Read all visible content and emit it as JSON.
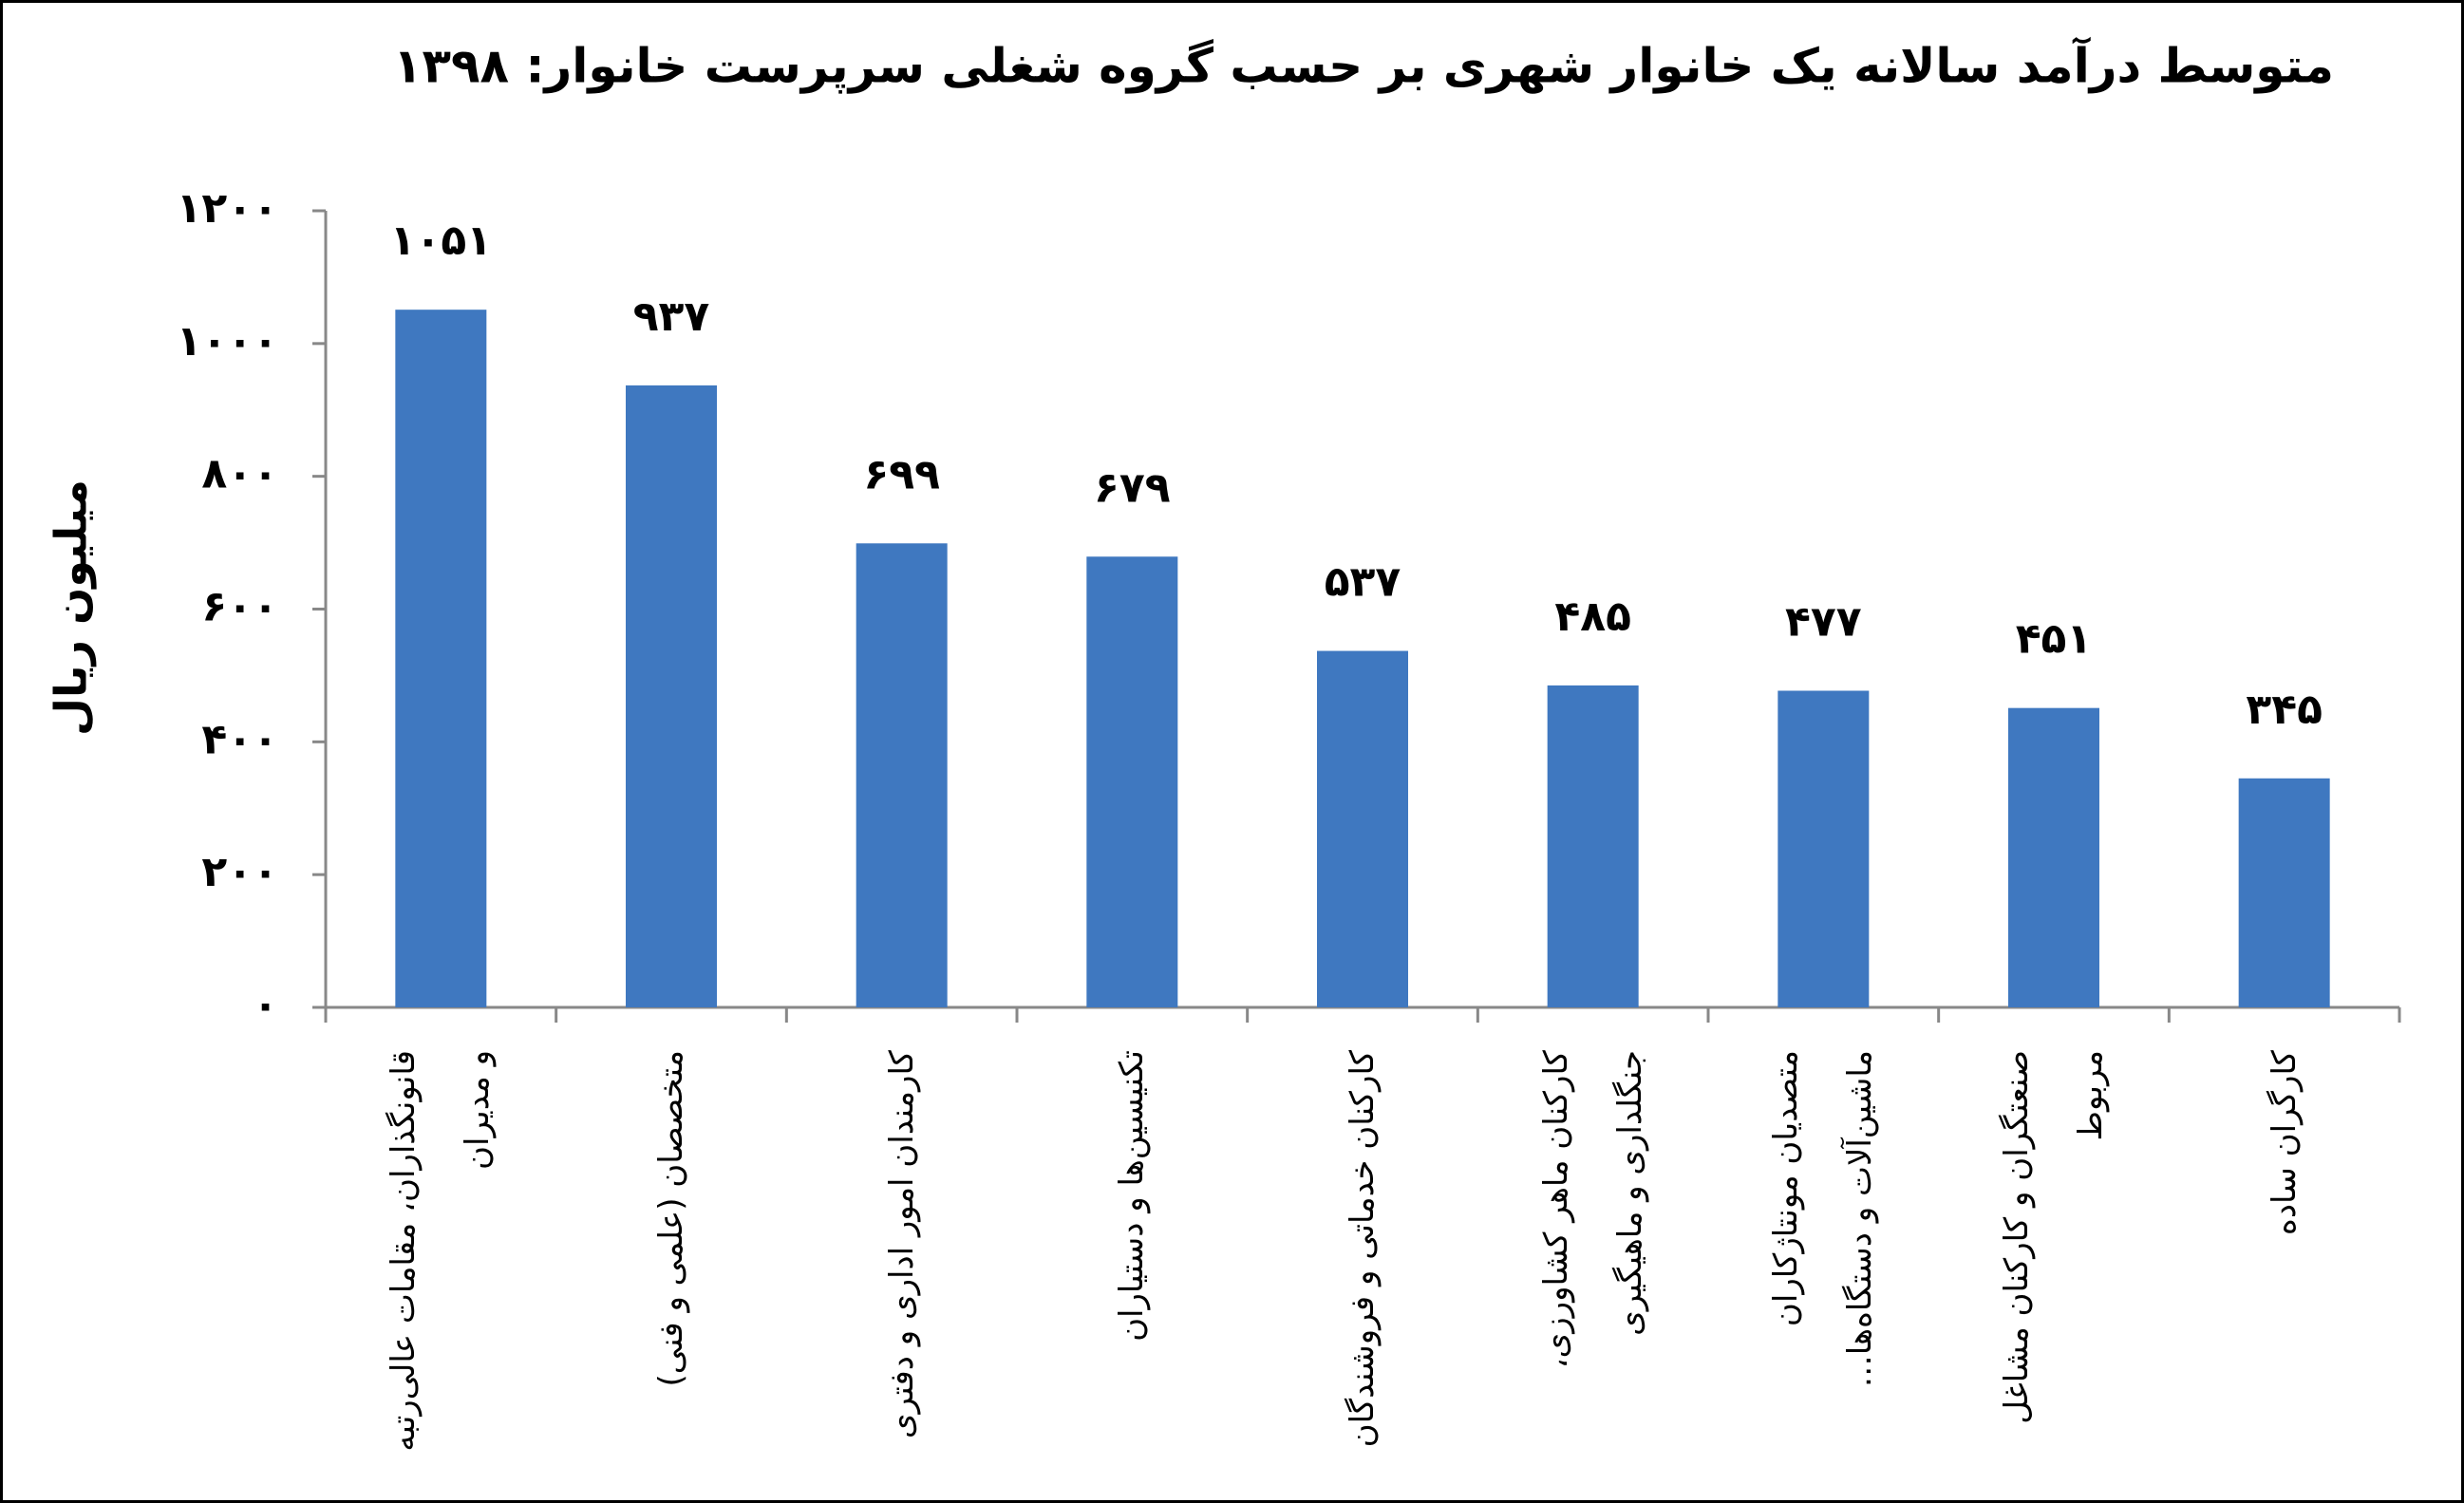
{
  "chart_data": {
    "type": "bar",
    "title": "متوسط درآمد سالانه یک خانوار شهری بر حسب گروه شغلی سرپرست خانوار: ۱۳۹۸",
    "y_label": "میلیون ریال",
    "categories": [
      "قانونگذاران، مقامات عالی‌رتبه و مدیران",
      "متخصصان (علمی و فنی)",
      "کارمندان امور اداری و دفتری",
      "تکنیسین‌ها و دستیاران",
      "کارکنان خدماتی و فروشندگان",
      "کارکنان ماهر کشاورزی، جنگلداری و ماهیگیری",
      "متصدیان مونتاژکاران ماشین‌آلات و دستگاه‌ها…",
      "صنعتگران و کارکنان مشاغل مربوط",
      "کارگران ساده"
    ],
    "values": [
      1051,
      937,
      699,
      679,
      537,
      485,
      477,
      451,
      345
    ],
    "value_labels": [
      "۱۰۵۱",
      "۹۳۷",
      "۶۹۹",
      "۶۷۹",
      "۵۳۷",
      "۴۸۵",
      "۴۷۷",
      "۴۵۱",
      "۳۴۵"
    ],
    "color": "#3f78c0",
    "ylim": [
      0,
      1200
    ],
    "yticks": [
      {
        "value": 0,
        "label": "۰"
      },
      {
        "value": 200,
        "label": "۲۰۰"
      },
      {
        "value": 400,
        "label": "۴۰۰"
      },
      {
        "value": 600,
        "label": "۶۰۰"
      },
      {
        "value": 800,
        "label": "۸۰۰"
      },
      {
        "value": 1000,
        "label": "۱۰۰۰"
      },
      {
        "value": 1200,
        "label": "۱۲۰۰"
      }
    ],
    "grid": false
  }
}
